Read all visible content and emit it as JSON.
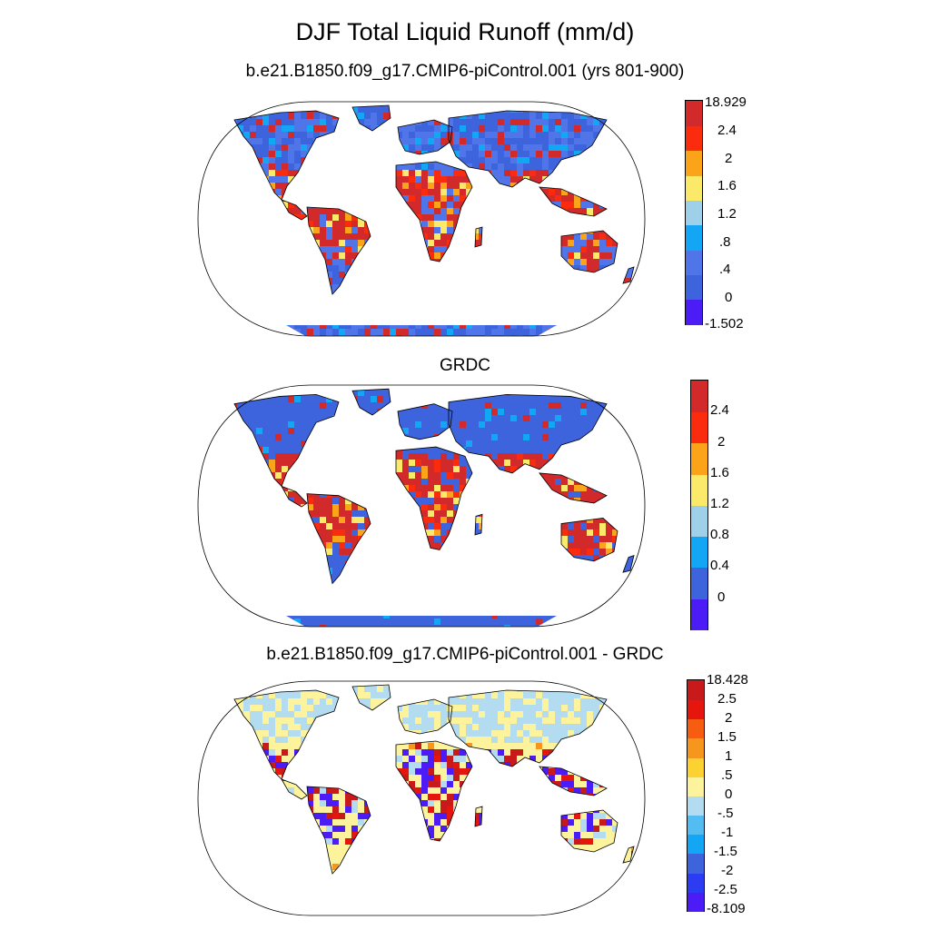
{
  "title": "DJF Total Liquid Runoff (mm/d)",
  "panels": [
    {
      "title": "b.e21.B1850.f09_g17.CMIP6-piControl.001 (yrs 801-900)",
      "palette": [
        "#4b1cf5",
        "#3d63dd",
        "#4f75e8",
        "#13a6f5",
        "#9fd0ea",
        "#fbe96a",
        "#fba319",
        "#fb2b0d",
        "#d22a2a"
      ],
      "labels": [
        "18.929",
        "2.4",
        "2",
        "1.6",
        "1.2",
        ".8",
        ".4",
        "0",
        "-1.502"
      ]
    },
    {
      "title": "GRDC",
      "palette": [
        "#4b1cf5",
        "#3d63dd",
        "#13a6f5",
        "#9fd0ea",
        "#fbe96a",
        "#fba319",
        "#fb2b0d",
        "#d22a2a"
      ],
      "labels": [
        "2.4",
        "2",
        "1.6",
        "1.2",
        "0.8",
        "0.4",
        "0"
      ]
    },
    {
      "title": "b.e21.B1850.f09_g17.CMIP6-piControl.001 - GRDC",
      "palette": [
        "#4b1cf5",
        "#2b3cf2",
        "#3d63dd",
        "#13a6f5",
        "#53bdf2",
        "#b3dcf0",
        "#fdf39c",
        "#fbd232",
        "#f7961c",
        "#f75d10",
        "#e5160e",
        "#c81a1a"
      ],
      "labels": [
        "18.428",
        "2.5",
        "2",
        "1.5",
        "1",
        ".5",
        "0",
        "-.5",
        "-1",
        "-1.5",
        "-2",
        "-2.5",
        "-8.109"
      ]
    }
  ]
}
